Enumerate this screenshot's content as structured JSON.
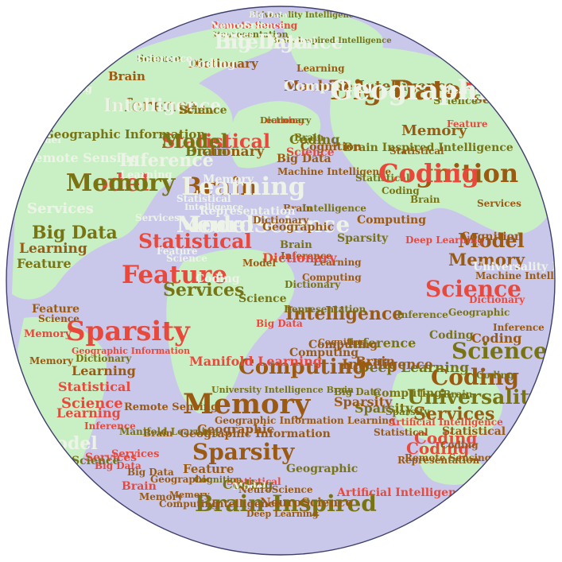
{
  "palette": {
    "land": "#c9f0c4",
    "ocean": "#c9c8ea",
    "outline": "#3f3f6e",
    "red": "#e8493c",
    "brown": "#9b5a12",
    "olive": "#787414",
    "faint": "#eef3e8",
    "faint_on_ocean": "#dcdaf2"
  },
  "words": [
    {
      "text": "Universality Intelligence",
      "color": "olive"
    },
    {
      "text": "Remote Sensing",
      "color": "red"
    },
    {
      "text": "Representation",
      "color": "olive"
    },
    {
      "text": "Intelligence",
      "color": "faint"
    },
    {
      "text": "Brain Inspired Intelligence",
      "color": "olive"
    },
    {
      "text": "Science",
      "color": "olive"
    },
    {
      "text": "Dictionary",
      "color": "brown"
    },
    {
      "text": "Machine Intelligence",
      "color": "brown"
    },
    {
      "text": "Big Data",
      "color": "brown"
    },
    {
      "text": "Inference",
      "color": "brown"
    },
    {
      "text": "Learning",
      "color": "red"
    },
    {
      "text": "Brain",
      "color": "brown"
    },
    {
      "text": "Statistical",
      "color": "red"
    },
    {
      "text": "Model",
      "color": "red"
    },
    {
      "text": "Dictionary",
      "color": "brown"
    },
    {
      "text": "Cognition",
      "color": "brown"
    },
    {
      "text": "Brain",
      "color": "brown"
    },
    {
      "text": "NeuroScience",
      "color": "faint"
    },
    {
      "text": "Services",
      "color": "faint"
    },
    {
      "text": "Big Data",
      "color": "olive"
    },
    {
      "text": "Learning",
      "color": "brown"
    },
    {
      "text": "Feature",
      "color": "olive"
    },
    {
      "text": "Statistical",
      "color": "red"
    },
    {
      "text": "Feature",
      "color": "red"
    },
    {
      "text": "Model",
      "color": "brown"
    },
    {
      "text": "Memory",
      "color": "brown"
    },
    {
      "text": "Science",
      "color": "red"
    },
    {
      "text": "Intelligence",
      "color": "brown"
    },
    {
      "text": "Sparsity",
      "color": "red"
    },
    {
      "text": "Geographic Information",
      "color": "red"
    },
    {
      "text": "Coding",
      "color": "brown"
    },
    {
      "text": "Computing",
      "color": "brown"
    },
    {
      "text": "Manifold Learning",
      "color": "red"
    },
    {
      "text": "Memory",
      "color": "brown"
    },
    {
      "text": "Geographic",
      "color": "brown"
    },
    {
      "text": "Sparsity",
      "color": "brown"
    },
    {
      "text": "Services",
      "color": "brown"
    },
    {
      "text": "Coding",
      "color": "red"
    },
    {
      "text": "Representation",
      "color": "brown"
    },
    {
      "text": "Brain Inspired",
      "color": "olive"
    },
    {
      "text": "Intelligence",
      "color": "brown"
    },
    {
      "text": "NeuroScience",
      "color": "brown"
    },
    {
      "text": "Deep Learning",
      "color": "brown"
    },
    {
      "text": "Artificial Intelligence",
      "color": "red"
    },
    {
      "text": "Statistical",
      "color": "red"
    },
    {
      "text": "Geographic",
      "color": "brown"
    },
    {
      "text": "Feature",
      "color": "brown"
    },
    {
      "text": "Cognition",
      "color": "olive"
    },
    {
      "text": "Memory",
      "color": "brown"
    },
    {
      "text": "Brain",
      "color": "olive"
    },
    {
      "text": "Coding",
      "color": "olive"
    },
    {
      "text": "Sparsity",
      "color": "olive"
    },
    {
      "text": "Services",
      "color": "red"
    },
    {
      "text": "Big Data",
      "color": "red"
    },
    {
      "text": "Brain",
      "color": "brown"
    },
    {
      "text": "Inference",
      "color": "red"
    },
    {
      "text": "Learning",
      "color": "brown"
    },
    {
      "text": "Statistical",
      "color": "red"
    },
    {
      "text": "Model",
      "color": "faint"
    },
    {
      "text": "Science",
      "color": "red"
    },
    {
      "text": "Learning",
      "color": "red"
    },
    {
      "text": "Remote Sensing",
      "color": "brown"
    },
    {
      "text": "Manifold Learning",
      "color": "olive"
    },
    {
      "text": "Deep Learning",
      "color": "olive"
    },
    {
      "text": "Geographic Information",
      "color": "brown"
    },
    {
      "text": "Geographic Information Learning",
      "color": "brown"
    },
    {
      "text": "University Intelligence Brain",
      "color": "olive"
    },
    {
      "text": "Cognition",
      "color": "brown"
    },
    {
      "text": "Computing",
      "color": "brown"
    },
    {
      "text": "Dictionary",
      "color": "olive"
    },
    {
      "text": "Science",
      "color": "olive"
    },
    {
      "text": "Coding",
      "color": "red"
    },
    {
      "text": "Big Data",
      "color": "brown"
    },
    {
      "text": "Brain",
      "color": "red"
    },
    {
      "text": "Geographic",
      "color": "brown"
    },
    {
      "text": "Memory",
      "color": "brown"
    },
    {
      "text": "Computing",
      "color": "brown"
    },
    {
      "text": "Services",
      "color": "red"
    },
    {
      "text": "Machine Intelligence",
      "color": "brown"
    },
    {
      "text": "Remote Sensing",
      "color": "brown"
    },
    {
      "text": "Coding",
      "color": "brown"
    },
    {
      "text": "Brain",
      "color": "brown"
    },
    {
      "text": "Science",
      "color": "olive"
    },
    {
      "text": "Coding",
      "color": "olive"
    },
    {
      "text": "Universality Intelligence",
      "color": "olive"
    },
    {
      "text": "Sparsity",
      "color": "olive"
    },
    {
      "text": "Representation",
      "color": "olive"
    },
    {
      "text": "Dictionary",
      "color": "olive"
    },
    {
      "text": "Inference",
      "color": "olive"
    },
    {
      "text": "Brain",
      "color": "brown"
    },
    {
      "text": "Science",
      "color": "olive"
    },
    {
      "text": "Computing",
      "color": "brown"
    },
    {
      "text": "Statistical",
      "color": "brown"
    },
    {
      "text": "Coding",
      "color": "brown"
    },
    {
      "text": "Inference",
      "color": "brown"
    },
    {
      "text": "Geographic",
      "color": "olive"
    },
    {
      "text": "Coding",
      "color": "olive"
    },
    {
      "text": "Brain",
      "color": "olive"
    },
    {
      "text": "Computing",
      "color": "olive"
    },
    {
      "text": "Sparsity",
      "color": "brown"
    },
    {
      "text": "Inference",
      "color": "olive"
    },
    {
      "text": "Services",
      "color": "olive"
    },
    {
      "text": "Intelligence",
      "color": "brown"
    },
    {
      "text": "Feature",
      "color": "brown"
    },
    {
      "text": "Memory",
      "color": "red"
    },
    {
      "text": "Big Data",
      "color": "olive"
    },
    {
      "text": "Memory",
      "color": "brown"
    },
    {
      "text": "Services",
      "color": "brown"
    },
    {
      "text": "Brain",
      "color": "olive"
    },
    {
      "text": "Deep Learning",
      "color": "red"
    },
    {
      "text": "Cognition",
      "color": "brown"
    },
    {
      "text": "Science",
      "color": "brown"
    },
    {
      "text": "Model",
      "color": "faint"
    },
    {
      "text": "NeuroScience",
      "color": "brown"
    },
    {
      "text": "Geographic",
      "color": "olive"
    },
    {
      "text": "Artificial Intelligence",
      "color": "red"
    },
    {
      "text": "Statistical",
      "color": "brown"
    },
    {
      "text": "Dictionary",
      "color": "red"
    },
    {
      "text": "Brain",
      "color": "olive"
    },
    {
      "text": "Statistical",
      "color": "olive"
    },
    {
      "text": "Computing",
      "color": "brown"
    },
    {
      "text": "Sparsity",
      "color": "olive"
    },
    {
      "text": "Learning",
      "color": "brown"
    },
    {
      "text": "Inference",
      "color": "brown"
    },
    {
      "text": "Dictionary",
      "color": "brown"
    },
    {
      "text": "Brain Inspired Intelligence",
      "color": "olive"
    },
    {
      "text": "Big Data",
      "color": "brown"
    },
    {
      "text": "Science",
      "color": "red"
    },
    {
      "text": "Coding",
      "color": "olive"
    },
    {
      "text": "Feature",
      "color": "red"
    },
    {
      "text": "Learning",
      "color": "faint"
    },
    {
      "text": "Geographic Information",
      "color": "red"
    },
    {
      "text": "Intelligence",
      "color": "red"
    },
    {
      "text": "Services",
      "color": "brown"
    },
    {
      "text": "Cognition",
      "color": "brown"
    },
    {
      "text": "Inference",
      "color": "brown"
    },
    {
      "text": "Learning",
      "color": "brown"
    },
    {
      "text": "Statistical",
      "color": "brown"
    },
    {
      "text": "Memory",
      "color": "brown"
    },
    {
      "text": "Coding",
      "color": "olive"
    },
    {
      "text": "Brain",
      "color": "brown"
    },
    {
      "text": "Universality Intelligence",
      "color": "faint"
    },
    {
      "text": "Dictionary",
      "color": "red"
    },
    {
      "text": "Model",
      "color": "brown"
    },
    {
      "text": "Computing",
      "color": "brown"
    },
    {
      "text": "Science",
      "color": "olive"
    },
    {
      "text": "Big Data",
      "color": "red"
    },
    {
      "text": "Intelligence",
      "color": "olive"
    },
    {
      "text": "Machine Intelligence",
      "color": "brown"
    },
    {
      "text": "Representation",
      "color": "faint"
    },
    {
      "text": "Memory",
      "color": "faint"
    },
    {
      "text": "Statistical",
      "color": "faint"
    },
    {
      "text": "Intelligence",
      "color": "faint"
    },
    {
      "text": "Feature",
      "color": "faint"
    },
    {
      "text": "Science",
      "color": "faint"
    },
    {
      "text": "Services",
      "color": "faint"
    },
    {
      "text": "Coding",
      "color": "faint"
    },
    {
      "text": "Inference",
      "color": "faint"
    },
    {
      "text": "Learning",
      "color": "faint"
    },
    {
      "text": "Model",
      "color": "faint"
    },
    {
      "text": "Geographic Information",
      "color": "olive"
    },
    {
      "text": "Sensing",
      "color": "faint"
    },
    {
      "text": "Cognition",
      "color": "faint"
    },
    {
      "text": "Remote Sensing",
      "color": "faint"
    },
    {
      "text": "Big Data",
      "color": "faint"
    },
    {
      "text": "NeuroScience",
      "color": "faint"
    },
    {
      "text": "Services",
      "color": "faint"
    },
    {
      "text": "Big Data",
      "color": "faint"
    },
    {
      "text": "Statistical",
      "color": "faint"
    },
    {
      "text": "Inference",
      "color": "faint"
    },
    {
      "text": "Coding",
      "color": "faint"
    },
    {
      "text": "Computing",
      "color": "faint"
    },
    {
      "text": "Geographic",
      "color": "faint"
    },
    {
      "text": "Intelligence",
      "color": "faint"
    },
    {
      "text": "Dictionary",
      "color": "olive"
    },
    {
      "text": "Science",
      "color": "olive"
    },
    {
      "text": "Model",
      "color": "olive"
    },
    {
      "text": "Memory",
      "color": "olive"
    },
    {
      "text": "Brain",
      "color": "olive"
    },
    {
      "text": "Coding",
      "color": "red"
    },
    {
      "text": "Learning",
      "color": "faint"
    },
    {
      "text": "Model",
      "color": "faint"
    },
    {
      "text": "Services",
      "color": "faint"
    }
  ]
}
